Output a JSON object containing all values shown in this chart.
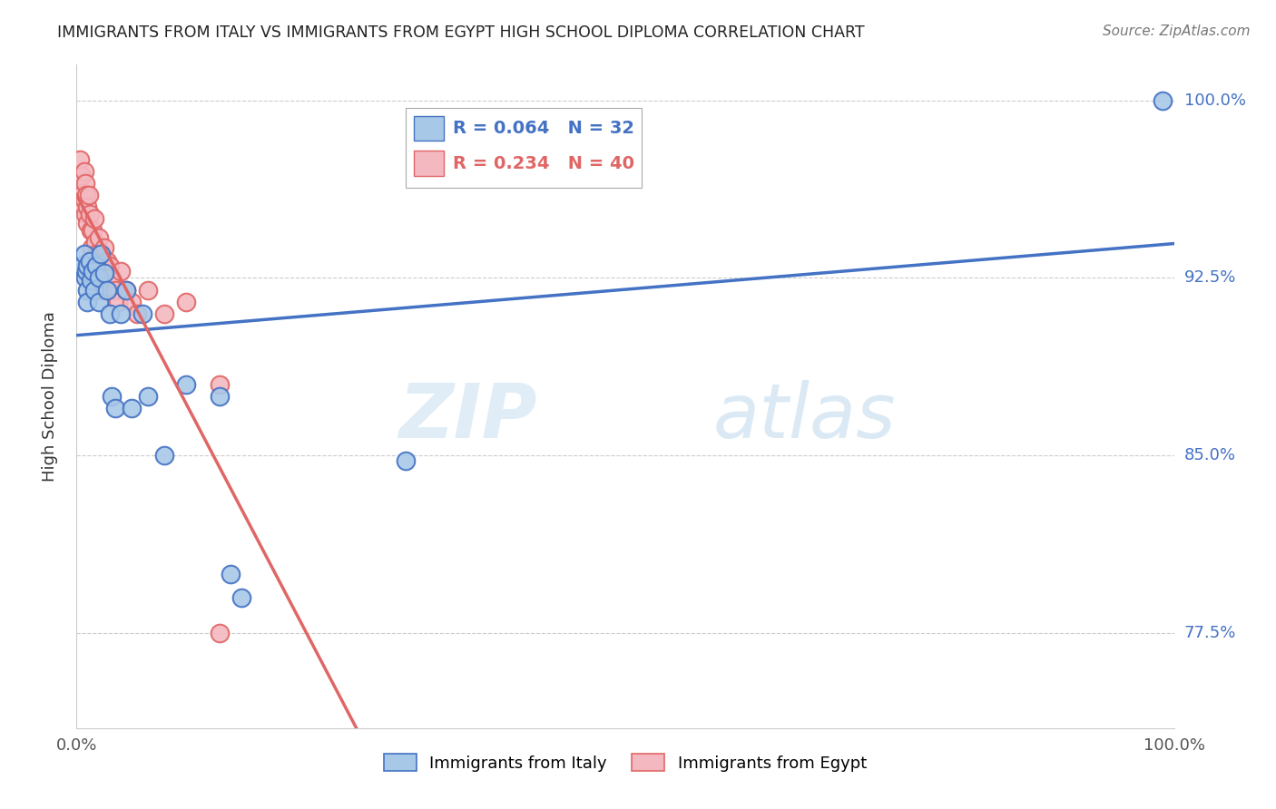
{
  "title": "IMMIGRANTS FROM ITALY VS IMMIGRANTS FROM EGYPT HIGH SCHOOL DIPLOMA CORRELATION CHART",
  "source": "Source: ZipAtlas.com",
  "ylabel": "High School Diploma",
  "ylabel_right_ticks": [
    1.0,
    0.925,
    0.85,
    0.775
  ],
  "ylabel_right_labels": [
    "100.0%",
    "92.5%",
    "85.0%",
    "77.5%"
  ],
  "xlim": [
    0.0,
    1.0
  ],
  "ylim": [
    0.735,
    1.015
  ],
  "legend_italy": "Immigrants from Italy",
  "legend_egypt": "Immigrants from Egypt",
  "R_italy": 0.064,
  "N_italy": 32,
  "R_egypt": 0.234,
  "N_egypt": 40,
  "color_italy_fill": "#a8c8e8",
  "color_egypt_fill": "#f4b8c0",
  "color_italy_edge": "#4472c4",
  "color_egypt_edge": "#e06666",
  "color_italy_line": "#4472c4",
  "color_egypt_line": "#e06666",
  "italy_x": [
    0.005,
    0.007,
    0.008,
    0.009,
    0.01,
    0.01,
    0.01,
    0.012,
    0.013,
    0.015,
    0.016,
    0.018,
    0.02,
    0.02,
    0.022,
    0.025,
    0.028,
    0.03,
    0.032,
    0.035,
    0.04,
    0.045,
    0.05,
    0.06,
    0.065,
    0.08,
    0.1,
    0.13,
    0.14,
    0.15,
    0.3,
    0.99
  ],
  "italy_y": [
    0.93,
    0.935,
    0.925,
    0.928,
    0.92,
    0.915,
    0.93,
    0.932,
    0.924,
    0.928,
    0.92,
    0.93,
    0.925,
    0.915,
    0.935,
    0.927,
    0.92,
    0.91,
    0.875,
    0.87,
    0.91,
    0.92,
    0.87,
    0.91,
    0.875,
    0.85,
    0.88,
    0.875,
    0.8,
    0.79,
    0.848,
    1.0
  ],
  "egypt_x": [
    0.003,
    0.005,
    0.005,
    0.006,
    0.007,
    0.007,
    0.008,
    0.008,
    0.009,
    0.01,
    0.01,
    0.011,
    0.012,
    0.013,
    0.014,
    0.015,
    0.015,
    0.016,
    0.017,
    0.018,
    0.019,
    0.02,
    0.021,
    0.022,
    0.023,
    0.025,
    0.028,
    0.03,
    0.032,
    0.035,
    0.038,
    0.04,
    0.045,
    0.05,
    0.055,
    0.065,
    0.08,
    0.1,
    0.13,
    0.13
  ],
  "egypt_y": [
    0.975,
    0.968,
    0.96,
    0.955,
    0.97,
    0.958,
    0.965,
    0.952,
    0.96,
    0.948,
    0.955,
    0.96,
    0.952,
    0.945,
    0.938,
    0.93,
    0.945,
    0.95,
    0.94,
    0.935,
    0.928,
    0.942,
    0.935,
    0.928,
    0.92,
    0.938,
    0.932,
    0.93,
    0.925,
    0.92,
    0.915,
    0.928,
    0.92,
    0.915,
    0.91,
    0.92,
    0.91,
    0.915,
    0.88,
    0.775
  ],
  "watermark_zip": "ZIP",
  "watermark_atlas": "atlas",
  "grid_color": "#cccccc",
  "background_color": "#ffffff"
}
